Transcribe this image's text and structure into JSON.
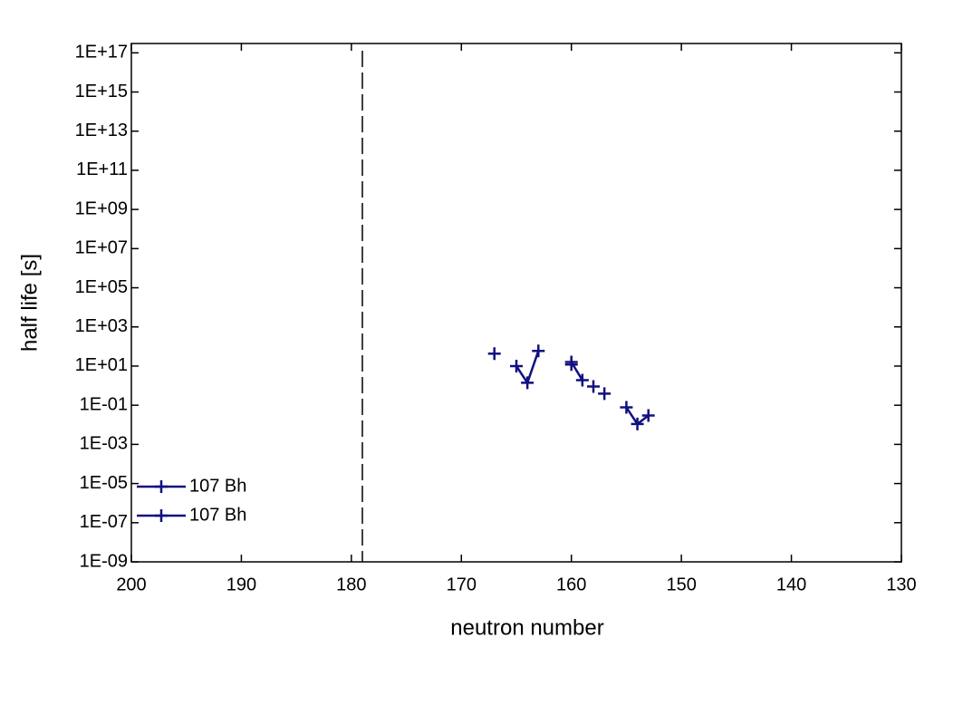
{
  "chart_data": {
    "type": "line",
    "xlabel": "neutron number",
    "ylabel": "half life [s]",
    "x": [
      167,
      166,
      165,
      164,
      163,
      162,
      161,
      160,
      159,
      158,
      157,
      156,
      155,
      154,
      153
    ],
    "series": [
      {
        "name": "107 Bh",
        "color": "#101080",
        "values": [
          43,
          null,
          10,
          1.4,
          59,
          null,
          null,
          16,
          1.9,
          null,
          0.39,
          null,
          0.078,
          0.011,
          0.03
        ]
      },
      {
        "name": "107 Bh",
        "color": "#101080",
        "values": [
          null,
          null,
          null,
          null,
          null,
          null,
          null,
          12,
          null,
          0.9,
          null,
          null,
          null,
          null,
          null
        ]
      }
    ],
    "xlim": [
      200,
      130
    ],
    "xticks": [
      200,
      190,
      180,
      170,
      160,
      150,
      140,
      130
    ],
    "ylim": [
      1e-09,
      3e+17
    ],
    "ylog": true,
    "yticks": [
      {
        "value": 1e-09,
        "label": "1E-09"
      },
      {
        "value": 1e-07,
        "label": "1E-07"
      },
      {
        "value": 1e-05,
        "label": "1E-05"
      },
      {
        "value": 0.001,
        "label": "1E-03"
      },
      {
        "value": 0.1,
        "label": "1E-01"
      },
      {
        "value": 10,
        "label": "1E+01"
      },
      {
        "value": 1000,
        "label": "1E+03"
      },
      {
        "value": 100000,
        "label": "1E+05"
      },
      {
        "value": 10000000,
        "label": "1E+07"
      },
      {
        "value": 1000000000,
        "label": "1E+09"
      },
      {
        "value": 100000000000,
        "label": "1E+11"
      },
      {
        "value": 10000000000000,
        "label": "1E+13"
      },
      {
        "value": 1000000000000000,
        "label": "1E+15"
      },
      {
        "value": 100000000000000000,
        "label": "1E+17"
      }
    ],
    "vline": 179,
    "legend": "lower left"
  }
}
